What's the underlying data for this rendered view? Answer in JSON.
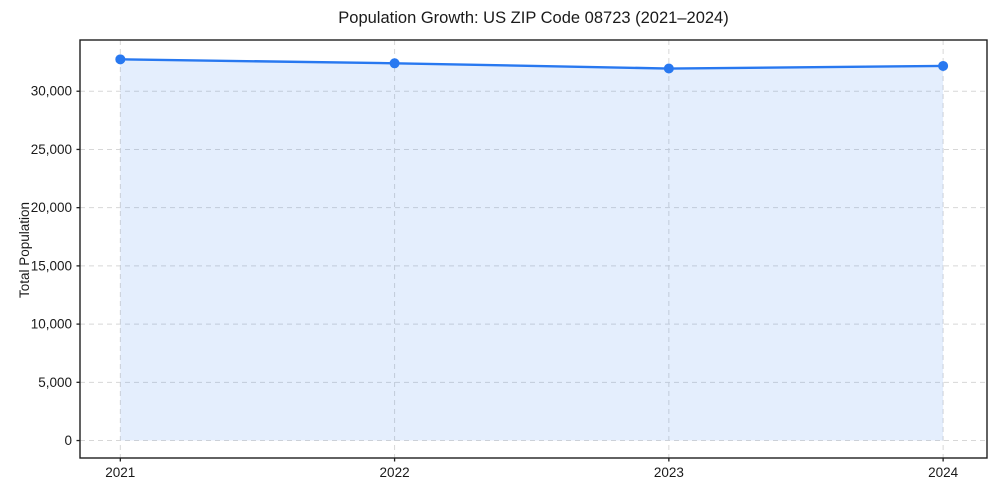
{
  "chart_data": {
    "type": "line",
    "title": "Population Growth: US ZIP Code 08723 (2021–2024)",
    "xlabel": "",
    "ylabel": "Total Population",
    "x": [
      2021,
      2022,
      2023,
      2024
    ],
    "xtick_labels": [
      "2021",
      "2022",
      "2023",
      "2024"
    ],
    "series": [
      {
        "name": "Total Population",
        "values": [
          32740,
          32400,
          31950,
          32170
        ]
      }
    ],
    "area_fill": true,
    "area_baseline": 0,
    "grid": true,
    "grid_style": "dashed",
    "legend_position": "none",
    "xlim": [
      2020.853,
      2024.16
    ],
    "ylim": [
      -1500,
      34400
    ],
    "yticks": [
      0,
      5000,
      10000,
      15000,
      20000,
      25000,
      30000
    ],
    "ytick_labels": [
      "0",
      "5,000",
      "10,000",
      "15,000",
      "20,000",
      "25,000",
      "30,000"
    ],
    "colors": {
      "line": "#2878f0",
      "marker": "#2878f0",
      "fill": "rgba(43, 122, 240, 0.13)",
      "grid": "#d7d7d7",
      "spine": "#1f1f1f",
      "text": "#1a1a1a",
      "background": "#ffffff"
    }
  }
}
